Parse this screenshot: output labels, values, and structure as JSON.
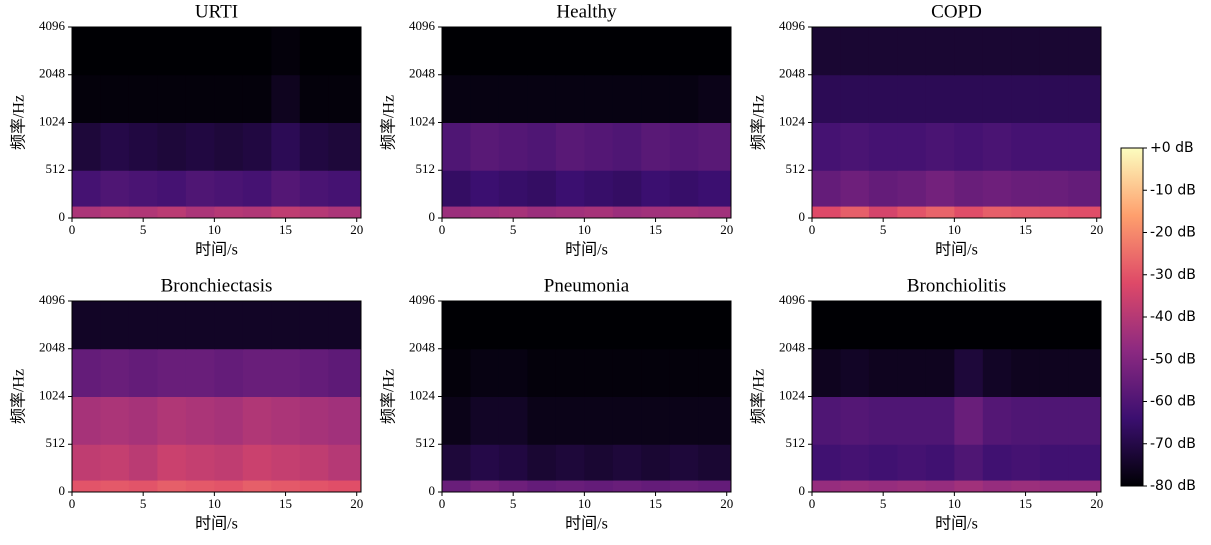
{
  "chart_data": [
    {
      "type": "spectrogram",
      "title": "URTI",
      "xlabel": "时间/s",
      "ylabel": "频率/Hz",
      "xlim": [
        0,
        20.3
      ],
      "xticks": [
        0,
        5,
        10,
        15,
        20
      ],
      "ylim": [
        0,
        4096
      ],
      "yticks": [
        0,
        512,
        1024,
        2048,
        4096
      ],
      "yscale": "symlog",
      "linthresh": 512,
      "base": 2,
      "zlim": [
        -80,
        0
      ],
      "time_edges": [
        0,
        2,
        4,
        6,
        8,
        10,
        12,
        14,
        16,
        18,
        20.3
      ],
      "freq_edges": [
        0,
        128,
        512,
        1024,
        2048,
        4096
      ],
      "z": [
        [
          -42,
          -40,
          -41,
          -39,
          -42,
          -40,
          -41,
          -38,
          -40,
          -42
        ],
        [
          -62,
          -60,
          -61,
          -62,
          -60,
          -61,
          -62,
          -59,
          -61,
          -62
        ],
        [
          -72,
          -70,
          -71,
          -72,
          -71,
          -72,
          -71,
          -68,
          -71,
          -72
        ],
        [
          -79,
          -79,
          -79,
          -79,
          -79,
          -79,
          -79,
          -76,
          -79,
          -79
        ],
        [
          -80,
          -80,
          -80,
          -80,
          -80,
          -80,
          -80,
          -79,
          -80,
          -80
        ]
      ]
    },
    {
      "type": "spectrogram",
      "title": "Healthy",
      "xlabel": "时间/s",
      "ylabel": "频率/Hz",
      "xlim": [
        0,
        20.3
      ],
      "xticks": [
        0,
        5,
        10,
        15,
        20
      ],
      "ylim": [
        0,
        4096
      ],
      "yticks": [
        0,
        512,
        1024,
        2048,
        4096
      ],
      "yscale": "symlog",
      "linthresh": 512,
      "base": 2,
      "zlim": [
        -80,
        0
      ],
      "time_edges": [
        0,
        2,
        4,
        6,
        8,
        10,
        12,
        14,
        16,
        18,
        20.3
      ],
      "freq_edges": [
        0,
        128,
        512,
        1024,
        2048,
        4096
      ],
      "z": [
        [
          -45,
          -44,
          -43,
          -45,
          -44,
          -43,
          -45,
          -44,
          -43,
          -44
        ],
        [
          -66,
          -64,
          -65,
          -66,
          -64,
          -65,
          -66,
          -64,
          -65,
          -64
        ],
        [
          -60,
          -58,
          -59,
          -60,
          -58,
          -59,
          -60,
          -58,
          -59,
          -58
        ],
        [
          -78,
          -78,
          -78,
          -78,
          -78,
          -78,
          -78,
          -78,
          -78,
          -77
        ],
        [
          -80,
          -80,
          -80,
          -80,
          -80,
          -80,
          -80,
          -80,
          -80,
          -80
        ]
      ]
    },
    {
      "type": "spectrogram",
      "title": "COPD",
      "xlabel": "时间/s",
      "ylabel": "频率/Hz",
      "xlim": [
        0,
        20.3
      ],
      "xticks": [
        0,
        5,
        10,
        15,
        20
      ],
      "ylim": [
        0,
        4096
      ],
      "yticks": [
        0,
        512,
        1024,
        2048,
        4096
      ],
      "yscale": "symlog",
      "linthresh": 512,
      "base": 2,
      "zlim": [
        -80,
        0
      ],
      "time_edges": [
        0,
        2,
        4,
        6,
        8,
        10,
        12,
        14,
        16,
        18,
        20.3
      ],
      "freq_edges": [
        0,
        128,
        512,
        1024,
        2048,
        4096
      ],
      "z": [
        [
          -32,
          -28,
          -34,
          -30,
          -27,
          -31,
          -28,
          -29,
          -30,
          -31
        ],
        [
          -56,
          -54,
          -56,
          -55,
          -53,
          -55,
          -54,
          -55,
          -55,
          -56
        ],
        [
          -62,
          -61,
          -62,
          -62,
          -61,
          -62,
          -61,
          -62,
          -62,
          -62
        ],
        [
          -68,
          -68,
          -68,
          -68,
          -68,
          -68,
          -68,
          -68,
          -68,
          -68
        ],
        [
          -73,
          -73,
          -73,
          -73,
          -73,
          -73,
          -73,
          -73,
          -73,
          -73
        ]
      ]
    },
    {
      "type": "spectrogram",
      "title": "Bronchiectasis",
      "xlabel": "时间/s",
      "ylabel": "频率/Hz",
      "xlim": [
        0,
        20.3
      ],
      "xticks": [
        0,
        5,
        10,
        15,
        20
      ],
      "ylim": [
        0,
        4096
      ],
      "yticks": [
        0,
        512,
        1024,
        2048,
        4096
      ],
      "yscale": "symlog",
      "linthresh": 512,
      "base": 2,
      "zlim": [
        -80,
        0
      ],
      "time_edges": [
        0,
        2,
        4,
        6,
        8,
        10,
        12,
        14,
        16,
        18,
        20.3
      ],
      "freq_edges": [
        0,
        128,
        512,
        1024,
        2048,
        4096
      ],
      "z": [
        [
          -30,
          -29,
          -30,
          -28,
          -29,
          -30,
          -28,
          -29,
          -30,
          -31
        ],
        [
          -38,
          -37,
          -39,
          -36,
          -37,
          -38,
          -36,
          -37,
          -38,
          -40
        ],
        [
          -43,
          -42,
          -43,
          -41,
          -42,
          -43,
          -41,
          -42,
          -43,
          -44
        ],
        [
          -56,
          -55,
          -56,
          -55,
          -55,
          -56,
          -55,
          -55,
          -56,
          -57
        ],
        [
          -75,
          -75,
          -75,
          -75,
          -75,
          -75,
          -75,
          -75,
          -75,
          -75
        ]
      ]
    },
    {
      "type": "spectrogram",
      "title": "Pneumonia",
      "xlabel": "时间/s",
      "ylabel": "频率/Hz",
      "xlim": [
        0,
        20.3
      ],
      "xticks": [
        0,
        5,
        10,
        15,
        20
      ],
      "ylim": [
        0,
        4096
      ],
      "yticks": [
        0,
        512,
        1024,
        2048,
        4096
      ],
      "yscale": "symlog",
      "linthresh": 512,
      "base": 2,
      "zlim": [
        -80,
        0
      ],
      "time_edges": [
        0,
        2,
        4,
        6,
        8,
        10,
        12,
        14,
        16,
        18,
        20.3
      ],
      "freq_edges": [
        0,
        128,
        512,
        1024,
        2048,
        4096
      ],
      "z": [
        [
          -55,
          -52,
          -54,
          -56,
          -55,
          -56,
          -55,
          -56,
          -55,
          -56
        ],
        [
          -72,
          -70,
          -71,
          -73,
          -72,
          -73,
          -72,
          -73,
          -72,
          -73
        ],
        [
          -77,
          -75,
          -75,
          -77,
          -77,
          -77,
          -77,
          -77,
          -77,
          -77
        ],
        [
          -79,
          -78,
          -78,
          -79,
          -79,
          -79,
          -79,
          -79,
          -79,
          -79
        ],
        [
          -80,
          -80,
          -80,
          -80,
          -80,
          -80,
          -80,
          -80,
          -80,
          -80
        ]
      ]
    },
    {
      "type": "spectrogram",
      "title": "Bronchiolitis",
      "xlabel": "时间/s",
      "ylabel": "频率/Hz",
      "xlim": [
        0,
        20.3
      ],
      "xticks": [
        0,
        5,
        10,
        15,
        20
      ],
      "ylim": [
        0,
        4096
      ],
      "yticks": [
        0,
        512,
        1024,
        2048,
        4096
      ],
      "yscale": "symlog",
      "linthresh": 512,
      "base": 2,
      "zlim": [
        -80,
        0
      ],
      "time_edges": [
        0,
        2,
        4,
        6,
        8,
        10,
        12,
        14,
        16,
        18,
        20.3
      ],
      "freq_edges": [
        0,
        128,
        512,
        1024,
        2048,
        4096
      ],
      "z": [
        [
          -46,
          -45,
          -46,
          -45,
          -46,
          -44,
          -46,
          -45,
          -46,
          -46
        ],
        [
          -63,
          -62,
          -63,
          -62,
          -63,
          -60,
          -63,
          -62,
          -63,
          -63
        ],
        [
          -60,
          -59,
          -60,
          -60,
          -60,
          -55,
          -59,
          -60,
          -60,
          -60
        ],
        [
          -76,
          -75,
          -76,
          -76,
          -76,
          -72,
          -75,
          -76,
          -76,
          -76
        ],
        [
          -80,
          -80,
          -80,
          -80,
          -80,
          -80,
          -80,
          -80,
          -80,
          -80
        ]
      ]
    },
    {
      "type": "colorbar",
      "zlim": [
        -80,
        0
      ],
      "colors": [
        "#000004",
        "#3b0f70",
        "#8c2981",
        "#de4968",
        "#fe9f6d",
        "#fcfdbf"
      ],
      "ticks": [
        {
          "value": 0,
          "label": "+0 dB"
        },
        {
          "value": -10,
          "label": "-10 dB"
        },
        {
          "value": -20,
          "label": "-20 dB"
        },
        {
          "value": -30,
          "label": "-30 dB"
        },
        {
          "value": -40,
          "label": "-40 dB"
        },
        {
          "value": -50,
          "label": "-50 dB"
        },
        {
          "value": -60,
          "label": "-60 dB"
        },
        {
          "value": -70,
          "label": "-70 dB"
        },
        {
          "value": -80,
          "label": "-80 dB"
        }
      ]
    }
  ]
}
